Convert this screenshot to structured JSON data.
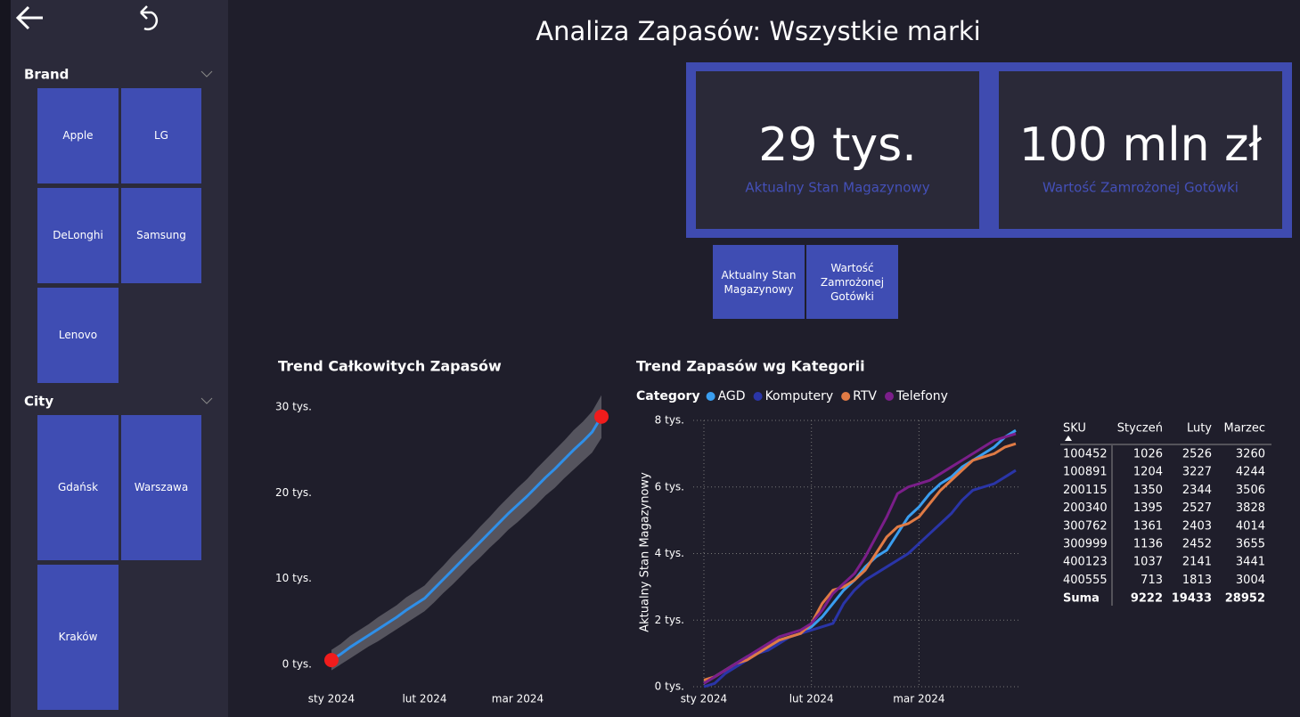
{
  "header": {
    "title": "Analiza Zapasów: Wszystkie marki"
  },
  "slicers": [
    {
      "title": "Brand",
      "items": [
        "Apple",
        "LG",
        "DeLonghi",
        "Samsung",
        "Lenovo"
      ]
    },
    {
      "title": "City",
      "items": [
        "Gdańsk",
        "Warszawa",
        "Kraków"
      ]
    }
  ],
  "kpis": [
    {
      "value": "29 tys.",
      "label": "Aktualny Stan Magazynowy"
    },
    {
      "value": "100 mln zł",
      "label": "Wartość Zamrożonej Gotówki"
    }
  ],
  "buttons": [
    "Aktualny Stan Magazynowy",
    "Wartość Zamrożonej Gotówki"
  ],
  "chart_data": [
    {
      "type": "line",
      "title": "Trend Całkowitych Zapasów",
      "categories": [
        "sty 2024",
        null,
        null,
        null,
        null,
        null,
        null,
        null,
        null,
        null,
        "lut 2024",
        null,
        null,
        null,
        null,
        null,
        null,
        null,
        null,
        null,
        "mar 2024",
        null,
        null,
        null,
        null,
        null,
        null,
        null,
        null,
        null
      ],
      "series": [
        {
          "color": "#2f8fe8",
          "values": [
            500,
            1200,
            2000,
            2700,
            3400,
            4100,
            4800,
            5500,
            6300,
            7000,
            7700,
            8800,
            9900,
            11000,
            12100,
            13200,
            14300,
            15400,
            16500,
            17600,
            18600,
            19600,
            20700,
            21800,
            22800,
            23900,
            25000,
            26000,
            27100,
            28900
          ]
        }
      ],
      "band": {
        "color": "#55545e",
        "low": [
          -700,
          0,
          700,
          1400,
          2100,
          2700,
          3400,
          4100,
          4800,
          5500,
          6200,
          7200,
          8300,
          9300,
          10400,
          11500,
          12500,
          13600,
          14600,
          15700,
          16600,
          17600,
          18600,
          19700,
          20600,
          21700,
          22700,
          23700,
          24700,
          26400
        ],
        "high": [
          1700,
          2400,
          3300,
          4000,
          4700,
          5500,
          6200,
          6900,
          7800,
          8500,
          9200,
          10400,
          11500,
          12700,
          13800,
          14900,
          16100,
          17200,
          18400,
          19500,
          20600,
          21600,
          22800,
          23900,
          25000,
          26100,
          27300,
          28300,
          29500,
          31400
        ]
      },
      "marker_color": "#f01c1c",
      "ylim": [
        -2500,
        32300
      ],
      "yticks": [
        {
          "value": 0,
          "label": "0 tys."
        },
        {
          "value": 10000,
          "label": "10 tys."
        },
        {
          "value": 20000,
          "label": "20 tys."
        },
        {
          "value": 30000,
          "label": "30 tys."
        }
      ],
      "grid": false
    },
    {
      "type": "line",
      "title": "Trend Zapasów wg Kategorii",
      "legend_title": "Category",
      "y_label": "Aktualny Stan Magazynowy",
      "categories": [
        "sty 2024",
        null,
        null,
        null,
        null,
        null,
        null,
        null,
        null,
        null,
        "lut 2024",
        null,
        null,
        null,
        null,
        null,
        null,
        null,
        null,
        null,
        "mar 2024",
        null,
        null,
        null,
        null,
        null,
        null,
        null,
        null,
        null
      ],
      "series": [
        {
          "name": "AGD",
          "color": "#3a9ef0",
          "values": [
            100,
            300,
            500,
            700,
            900,
            1000,
            1200,
            1400,
            1500,
            1600,
            1800,
            2100,
            2500,
            2900,
            3200,
            3600,
            3900,
            4100,
            4600,
            5100,
            5400,
            5800,
            6100,
            6300,
            6600,
            6800,
            7000,
            7200,
            7500,
            7700
          ]
        },
        {
          "name": "Komputery",
          "color": "#2a35a8",
          "values": [
            0,
            100,
            400,
            600,
            800,
            1000,
            1100,
            1300,
            1500,
            1600,
            1700,
            1800,
            1900,
            2500,
            2900,
            3200,
            3400,
            3600,
            3800,
            4000,
            4300,
            4600,
            4900,
            5200,
            5600,
            5900,
            6000,
            6100,
            6300,
            6500
          ]
        },
        {
          "name": "RTV",
          "color": "#e07b45",
          "values": [
            200,
            300,
            500,
            700,
            800,
            1000,
            1200,
            1400,
            1500,
            1600,
            1900,
            2500,
            2900,
            3000,
            3200,
            3500,
            4000,
            4500,
            4800,
            4900,
            5100,
            5500,
            5900,
            6200,
            6500,
            6800,
            6900,
            7000,
            7200,
            7300
          ]
        },
        {
          "name": "Telefony",
          "color": "#7b1e8a",
          "values": [
            100,
            300,
            500,
            700,
            900,
            1100,
            1300,
            1500,
            1600,
            1700,
            1900,
            2300,
            2800,
            3100,
            3400,
            3900,
            4500,
            5100,
            5800,
            6000,
            6100,
            6200,
            6400,
            6600,
            6800,
            7000,
            7200,
            7400,
            7500,
            7600
          ]
        }
      ],
      "ylim": [
        0,
        8000
      ],
      "yticks": [
        {
          "value": 0,
          "label": "0 tys."
        },
        {
          "value": 2000,
          "label": "2 tys."
        },
        {
          "value": 4000,
          "label": "4 tys."
        },
        {
          "value": 6000,
          "label": "6 tys."
        },
        {
          "value": 8000,
          "label": "8 tys."
        }
      ],
      "grid": true
    }
  ],
  "table": {
    "columns": [
      "SKU",
      "Styczeń",
      "Luty",
      "Marzec"
    ],
    "rows": [
      [
        "100452",
        1026,
        2526,
        3260
      ],
      [
        "100891",
        1204,
        3227,
        4244
      ],
      [
        "200115",
        1350,
        2344,
        3506
      ],
      [
        "200340",
        1395,
        2527,
        3828
      ],
      [
        "300762",
        1361,
        2403,
        4014
      ],
      [
        "300999",
        1136,
        2452,
        3655
      ],
      [
        "400123",
        1037,
        2141,
        3441
      ],
      [
        "400555",
        713,
        1813,
        3004
      ]
    ],
    "total": [
      "Suma",
      9222,
      19433,
      28952
    ]
  }
}
